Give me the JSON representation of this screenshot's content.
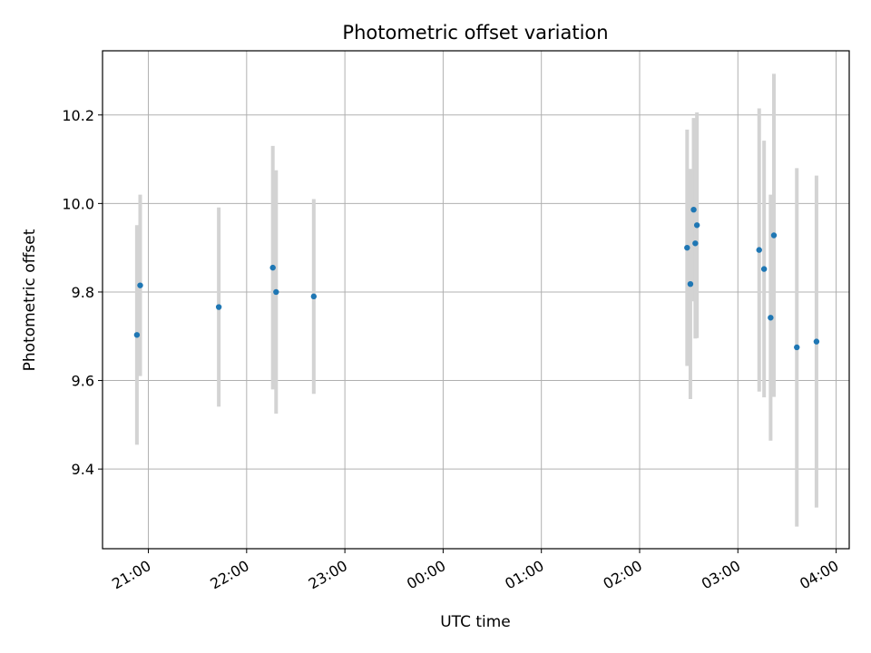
{
  "chart_data": {
    "type": "scatter",
    "title": "Photometric offset variation",
    "xlabel": "UTC time",
    "ylabel": "Photometric offset",
    "x_axis_kind": "time",
    "xlim": [
      "20:32",
      "04:08"
    ],
    "ylim": [
      9.22,
      10.345
    ],
    "x_ticks": [
      "21:00",
      "22:00",
      "23:00",
      "00:00",
      "01:00",
      "02:00",
      "03:00",
      "04:00"
    ],
    "y_ticks": [
      9.4,
      9.6,
      9.8,
      10.0,
      10.2
    ],
    "grid": true,
    "point_color": "#1f77b4",
    "errorbar_color": "#d3d3d3",
    "points": [
      {
        "x": "20:53",
        "y": 9.703,
        "err": 0.248
      },
      {
        "x": "20:55",
        "y": 9.815,
        "err": 0.205
      },
      {
        "x": "21:43",
        "y": 9.766,
        "err": 0.225
      },
      {
        "x": "22:16",
        "y": 9.855,
        "err": 0.275
      },
      {
        "x": "22:18",
        "y": 9.8,
        "err": 0.275
      },
      {
        "x": "22:41",
        "y": 9.79,
        "err": 0.22
      },
      {
        "x": "02:29",
        "y": 9.9,
        "err": 0.267
      },
      {
        "x": "02:31",
        "y": 9.818,
        "err": 0.26
      },
      {
        "x": "02:33",
        "y": 9.986,
        "err": 0.207
      },
      {
        "x": "02:34",
        "y": 9.91,
        "err": 0.215
      },
      {
        "x": "02:35",
        "y": 9.951,
        "err": 0.255
      },
      {
        "x": "03:13",
        "y": 9.895,
        "err": 0.32
      },
      {
        "x": "03:16",
        "y": 9.852,
        "err": 0.29
      },
      {
        "x": "03:20",
        "y": 9.742,
        "err": 0.278
      },
      {
        "x": "03:22",
        "y": 9.928,
        "err": 0.365
      },
      {
        "x": "03:36",
        "y": 9.675,
        "err": 0.405
      },
      {
        "x": "03:48",
        "y": 9.688,
        "err": 0.375
      }
    ]
  }
}
